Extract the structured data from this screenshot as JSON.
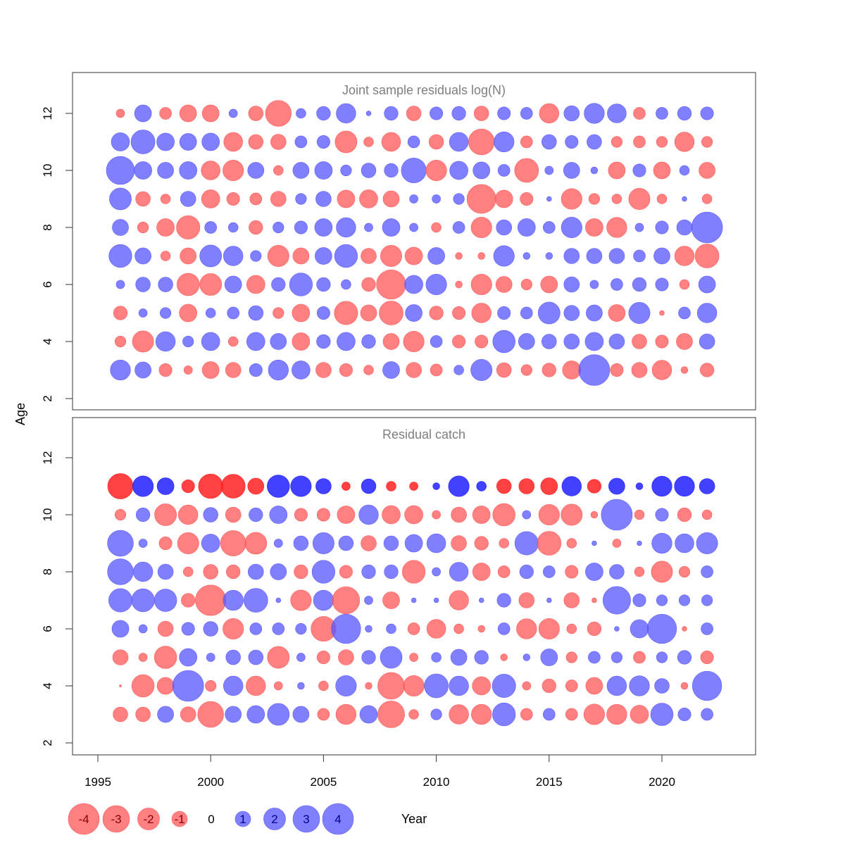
{
  "colors": {
    "negative": "#ff5555",
    "positive": "#5555ff",
    "negative_strong": "#ff2020",
    "positive_strong": "#2020ff",
    "frame": "#333333",
    "title": "#7f7f7f"
  },
  "chart_data": {
    "type": "bubble",
    "xlabel": "Year",
    "ylabel": "Age",
    "x_ticks": [
      1995,
      2000,
      2005,
      2010,
      2015,
      2020
    ],
    "y_ticks": [
      2,
      4,
      6,
      8,
      10,
      12
    ],
    "xlim": [
      1994,
      2024
    ],
    "ylim": [
      1.5,
      13.5
    ],
    "years": [
      1996,
      1997,
      1998,
      1999,
      2000,
      2001,
      2002,
      2003,
      2004,
      2005,
      2006,
      2007,
      2008,
      2009,
      2010,
      2011,
      2012,
      2013,
      2014,
      2015,
      2016,
      2017,
      2018,
      2019,
      2020,
      2021,
      2022
    ],
    "legend": {
      "values": [
        -4,
        -3,
        -2,
        -1,
        0,
        1,
        2,
        3,
        4
      ],
      "labels": [
        "-4",
        "-3",
        "-2",
        "-1",
        "0",
        "1",
        "2",
        "3",
        "4"
      ]
    },
    "panels": [
      {
        "title": "Joint sample residuals log(N)",
        "ages": [
          3,
          4,
          5,
          6,
          7,
          8,
          9,
          10,
          11,
          12
        ],
        "residuals": {
          "12": [
            -0.3,
            1.2,
            -0.6,
            -1.2,
            -1.2,
            0.3,
            -0.9,
            -2.8,
            0.4,
            0.8,
            1.6,
            0.1,
            0.8,
            -0.9,
            0.7,
            0.8,
            -0.9,
            0.7,
            0.6,
            -1.6,
            1.0,
            1.7,
            1.5,
            -0.6,
            0.6,
            0.8,
            0.7
          ],
          "11": [
            1.4,
            2.4,
            1.3,
            1.2,
            1.3,
            -1.5,
            -0.9,
            -1.0,
            0.6,
            0.7,
            -2.0,
            -0.4,
            -1.5,
            0.6,
            -0.9,
            1.5,
            -2.8,
            1.7,
            -0.6,
            0.9,
            0.7,
            0.9,
            -0.5,
            -0.6,
            -0.5,
            -1.6,
            -0.5
          ],
          "10": [
            3.3,
            1.3,
            1.1,
            1.3,
            -1.5,
            -1.8,
            1.1,
            -0.4,
            1.1,
            1.3,
            0.5,
            0.9,
            0.8,
            2.6,
            -1.8,
            1.4,
            1.2,
            0.6,
            -2.4,
            0.3,
            1.1,
            0.2,
            -1.2,
            0.7,
            -1.2,
            0.4,
            -1.1
          ],
          "9": [
            2.0,
            -0.9,
            -0.4,
            1.0,
            -1.4,
            -0.7,
            -0.6,
            -1.0,
            0.5,
            1.0,
            -1.3,
            -1.4,
            -1.1,
            0.3,
            0.3,
            0.5,
            -3.5,
            -1.3,
            -0.7,
            0.1,
            -1.8,
            -0.5,
            -0.4,
            -1.9,
            -0.4,
            0.1,
            -0.4
          ],
          "8": [
            1.1,
            -0.5,
            -1.3,
            -2.3,
            0.6,
            0.4,
            -0.8,
            0.5,
            0.7,
            1.3,
            1.6,
            0.3,
            1.3,
            0.3,
            -0.4,
            0.6,
            -1.8,
            1.0,
            1.3,
            0.6,
            1.8,
            -1.3,
            -1.7,
            0.3,
            0.7,
            1.0,
            4.0
          ],
          "7": [
            2.2,
            1.1,
            -0.4,
            -1.1,
            2.0,
            1.6,
            0.5,
            -1.9,
            -1.1,
            1.2,
            2.2,
            -1.0,
            -1.9,
            -1.3,
            1.2,
            -0.2,
            -0.2,
            1.8,
            0.2,
            0.2,
            1.0,
            1.0,
            1.0,
            0.6,
            1.1,
            -1.6,
            -2.4
          ],
          "6": [
            0.3,
            0.9,
            0.9,
            -2.1,
            -2.0,
            1.2,
            -1.4,
            0.8,
            2.2,
            0.8,
            0.4,
            -0.8,
            -3.6,
            1.4,
            1.8,
            -0.2,
            -1.8,
            -1.1,
            -0.5,
            -1.2,
            1.0,
            0.3,
            0.6,
            0.8,
            0.7,
            -0.4,
            1.2
          ],
          "5": [
            -0.8,
            0.3,
            0.5,
            -1.3,
            0.4,
            0.6,
            0.9,
            -0.5,
            -1.3,
            0.7,
            -2.3,
            -1.1,
            -2.4,
            1.2,
            -0.8,
            -0.7,
            -1.6,
            0.7,
            0.6,
            2.0,
            1.0,
            1.1,
            -1.2,
            1.9,
            -0.1,
            0.6,
            1.6
          ],
          "4": [
            -0.5,
            -1.9,
            1.6,
            0.5,
            1.4,
            -0.4,
            1.4,
            1.1,
            -1.3,
            0.8,
            1.4,
            0.8,
            -1.1,
            -1.8,
            0.6,
            -0.7,
            -0.7,
            2.1,
            1.1,
            0.9,
            1.0,
            1.4,
            1.0,
            -0.9,
            -0.7,
            -1.1,
            1.0
          ],
          "3": [
            1.7,
            1.1,
            -0.7,
            -0.3,
            -1.2,
            -1.0,
            0.7,
            1.7,
            1.4,
            -1.0,
            -0.7,
            -0.4,
            1.2,
            -1.0,
            -0.6,
            0.4,
            1.9,
            -0.9,
            -0.5,
            -0.8,
            -1.4,
            4.0,
            -0.7,
            -1.0,
            -1.6,
            -0.2,
            -0.8
          ]
        },
        "row_11_strong": false
      },
      {
        "title": "Residual catch",
        "ages": [
          3,
          4,
          5,
          6,
          7,
          8,
          9,
          10,
          11
        ],
        "residuals": {
          "11": [
            -2.7,
            1.8,
            1.2,
            -0.7,
            -2.5,
            -2.4,
            -1.1,
            2.1,
            1.8,
            1.0,
            -0.3,
            0.9,
            -0.4,
            -0.3,
            0.2,
            1.8,
            0.4,
            -0.9,
            -1.0,
            -1.2,
            1.6,
            -0.8,
            1.1,
            0.2,
            1.7,
            1.7,
            1.0
          ],
          "10": [
            -0.5,
            0.8,
            -2.0,
            -1.6,
            0.9,
            -1.0,
            0.8,
            1.3,
            -0.7,
            -0.7,
            -1.3,
            1.6,
            -1.4,
            -1.4,
            -0.3,
            -1.0,
            -1.3,
            -2.1,
            0.3,
            -1.8,
            -1.9,
            -0.2,
            4.0,
            -0.4,
            0.7,
            -0.8,
            -0.4
          ],
          "9": [
            2.8,
            0.3,
            -0.7,
            -1.9,
            1.4,
            -2.7,
            -2.0,
            0.3,
            0.9,
            1.9,
            0.9,
            -1.0,
            0.9,
            1.3,
            1.5,
            -1.0,
            -0.8,
            -0.4,
            2.3,
            -2.4,
            -0.4,
            0.1,
            -0.3,
            0.1,
            1.7,
            1.5,
            1.9
          ],
          "8": [
            2.8,
            1.6,
            1.0,
            -0.4,
            -0.9,
            -0.8,
            1.0,
            1.1,
            -0.8,
            2.2,
            -0.7,
            0.8,
            0.8,
            -2.2,
            0.3,
            1.5,
            -1.3,
            -0.6,
            0.8,
            0.6,
            -0.7,
            1.3,
            0.9,
            -0.4,
            -1.9,
            -0.5,
            0.6
          ],
          "7": [
            2.3,
            2.2,
            2.1,
            -0.8,
            -3.9,
            1.7,
            2.4,
            0.1,
            -1.8,
            1.7,
            -3.1,
            0.3,
            -1.2,
            0.1,
            0.1,
            -1.6,
            0.1,
            0.8,
            -1.0,
            0.1,
            -1.0,
            -0.1,
            3.2,
            0.7,
            0.5,
            0.5,
            0.5
          ],
          "6": [
            1.2,
            0.3,
            -1.0,
            0.7,
            0.9,
            -1.8,
            0.6,
            0.6,
            0.5,
            -2.6,
            3.6,
            0.2,
            0.4,
            -0.6,
            -1.5,
            -0.4,
            -0.2,
            0.6,
            -1.7,
            -1.8,
            -0.4,
            -0.8,
            0.1,
            1.4,
            3.6,
            -0.1,
            0.6
          ],
          "5": [
            -1.0,
            -0.3,
            -2.1,
            1.3,
            0.3,
            0.9,
            0.9,
            -2.0,
            0.3,
            -0.7,
            -1.0,
            0.8,
            2.0,
            -0.3,
            0.4,
            1.1,
            0.8,
            -0.2,
            0.2,
            1.2,
            -0.5,
            0.6,
            0.5,
            -0.6,
            0.5,
            0.8,
            -0.7
          ],
          "4": [
            -0.02,
            -2.1,
            -1.2,
            4.0,
            -0.5,
            1.6,
            -1.6,
            -0.3,
            0.2,
            -0.4,
            1.8,
            -0.2,
            -3.0,
            -1.8,
            2.4,
            1.6,
            -1.4,
            2.3,
            -0.3,
            -0.8,
            -0.6,
            -1.2,
            1.6,
            1.7,
            0.9,
            -0.2,
            3.6
          ],
          "3": [
            -0.9,
            -0.9,
            1.1,
            -1.0,
            -2.8,
            1.1,
            1.3,
            2.0,
            1.1,
            -0.6,
            -1.7,
            1.3,
            -3.0,
            -0.4,
            0.5,
            -1.6,
            -1.7,
            2.2,
            -0.6,
            0.6,
            -0.6,
            -1.8,
            -1.7,
            -1.4,
            2.1,
            0.7,
            0.6
          ]
        },
        "row_11_strong": true
      }
    ]
  }
}
